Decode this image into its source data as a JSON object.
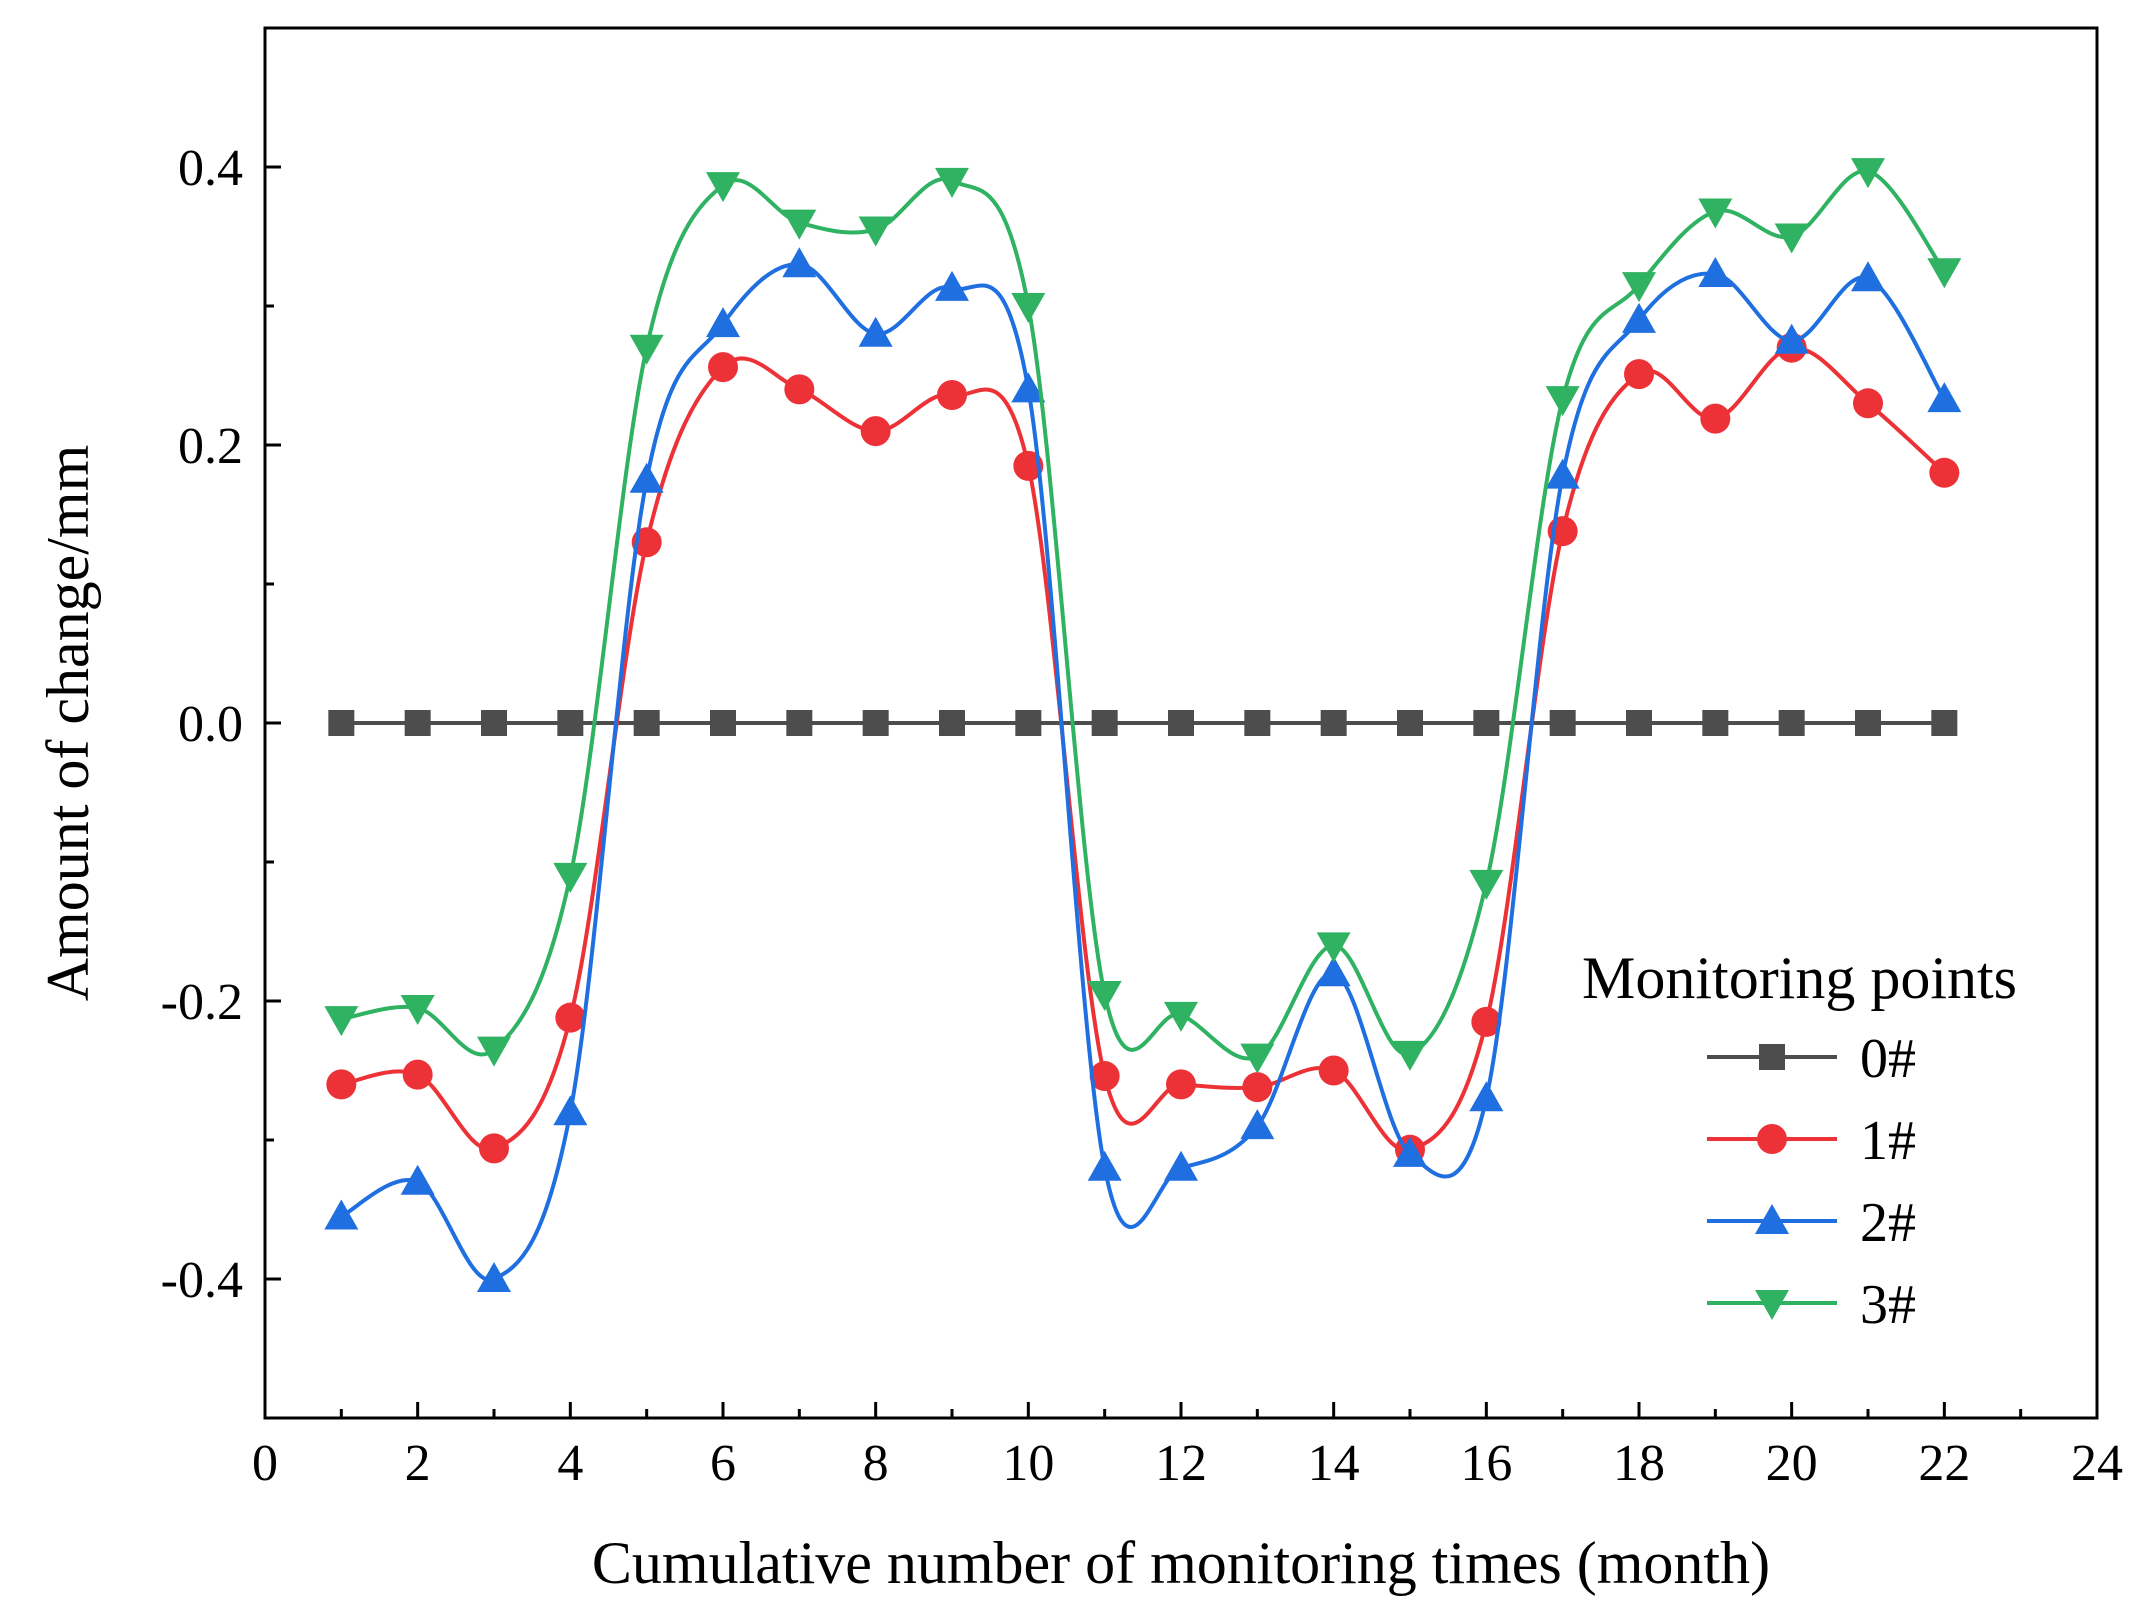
{
  "chart_data": {
    "type": "line",
    "xlabel": "Cumulative number of monitoring times (month)",
    "ylabel": "Amount of change/mm",
    "xlim": [
      0,
      24
    ],
    "ylim": [
      -0.5,
      0.5
    ],
    "xticks": [
      0,
      2,
      4,
      6,
      8,
      10,
      12,
      14,
      16,
      18,
      20,
      22,
      24
    ],
    "xtick_labels": [
      "0",
      "2",
      "4",
      "6",
      "8",
      "10",
      "12",
      "14",
      "16",
      "18",
      "20",
      "22",
      "24"
    ],
    "yticks": [
      -0.4,
      -0.2,
      0.0,
      0.2,
      0.4
    ],
    "ytick_labels": [
      "-0.4",
      "-0.2",
      "0.0",
      "0.2",
      "0.4"
    ],
    "legend": {
      "title": "Monitoring points",
      "position": "lower-right"
    },
    "x": [
      1,
      2,
      3,
      4,
      5,
      6,
      7,
      8,
      9,
      10,
      11,
      12,
      13,
      14,
      15,
      16,
      17,
      18,
      19,
      20,
      21,
      22
    ],
    "series": [
      {
        "name": "0#",
        "color": "#4d4d4d",
        "marker": "square",
        "values": [
          0,
          0,
          0,
          0,
          0,
          0,
          0,
          0,
          0,
          0,
          0,
          0,
          0,
          0,
          0,
          0,
          0,
          0,
          0,
          0,
          0,
          0
        ]
      },
      {
        "name": "1#",
        "color": "#ed3237",
        "marker": "circle",
        "values": [
          -0.26,
          -0.253,
          -0.306,
          -0.212,
          0.13,
          0.256,
          0.24,
          0.21,
          0.236,
          0.185,
          -0.254,
          -0.26,
          -0.262,
          -0.25,
          -0.307,
          -0.215,
          0.138,
          0.251,
          0.219,
          0.27,
          0.23,
          0.18
        ]
      },
      {
        "name": "2#",
        "color": "#1f6fe0",
        "marker": "triangle-up",
        "values": [
          -0.355,
          -0.33,
          -0.4,
          -0.28,
          0.175,
          0.287,
          0.33,
          0.28,
          0.313,
          0.24,
          -0.32,
          -0.32,
          -0.29,
          -0.18,
          -0.31,
          -0.27,
          0.178,
          0.29,
          0.323,
          0.275,
          0.32,
          0.233
        ]
      },
      {
        "name": "3#",
        "color": "#2fb261",
        "marker": "triangle-down",
        "values": [
          -0.213,
          -0.205,
          -0.235,
          -0.11,
          0.27,
          0.387,
          0.36,
          0.355,
          0.39,
          0.3,
          -0.195,
          -0.21,
          -0.24,
          -0.16,
          -0.238,
          -0.115,
          0.233,
          0.315,
          0.368,
          0.35,
          0.397,
          0.325
        ]
      }
    ]
  }
}
